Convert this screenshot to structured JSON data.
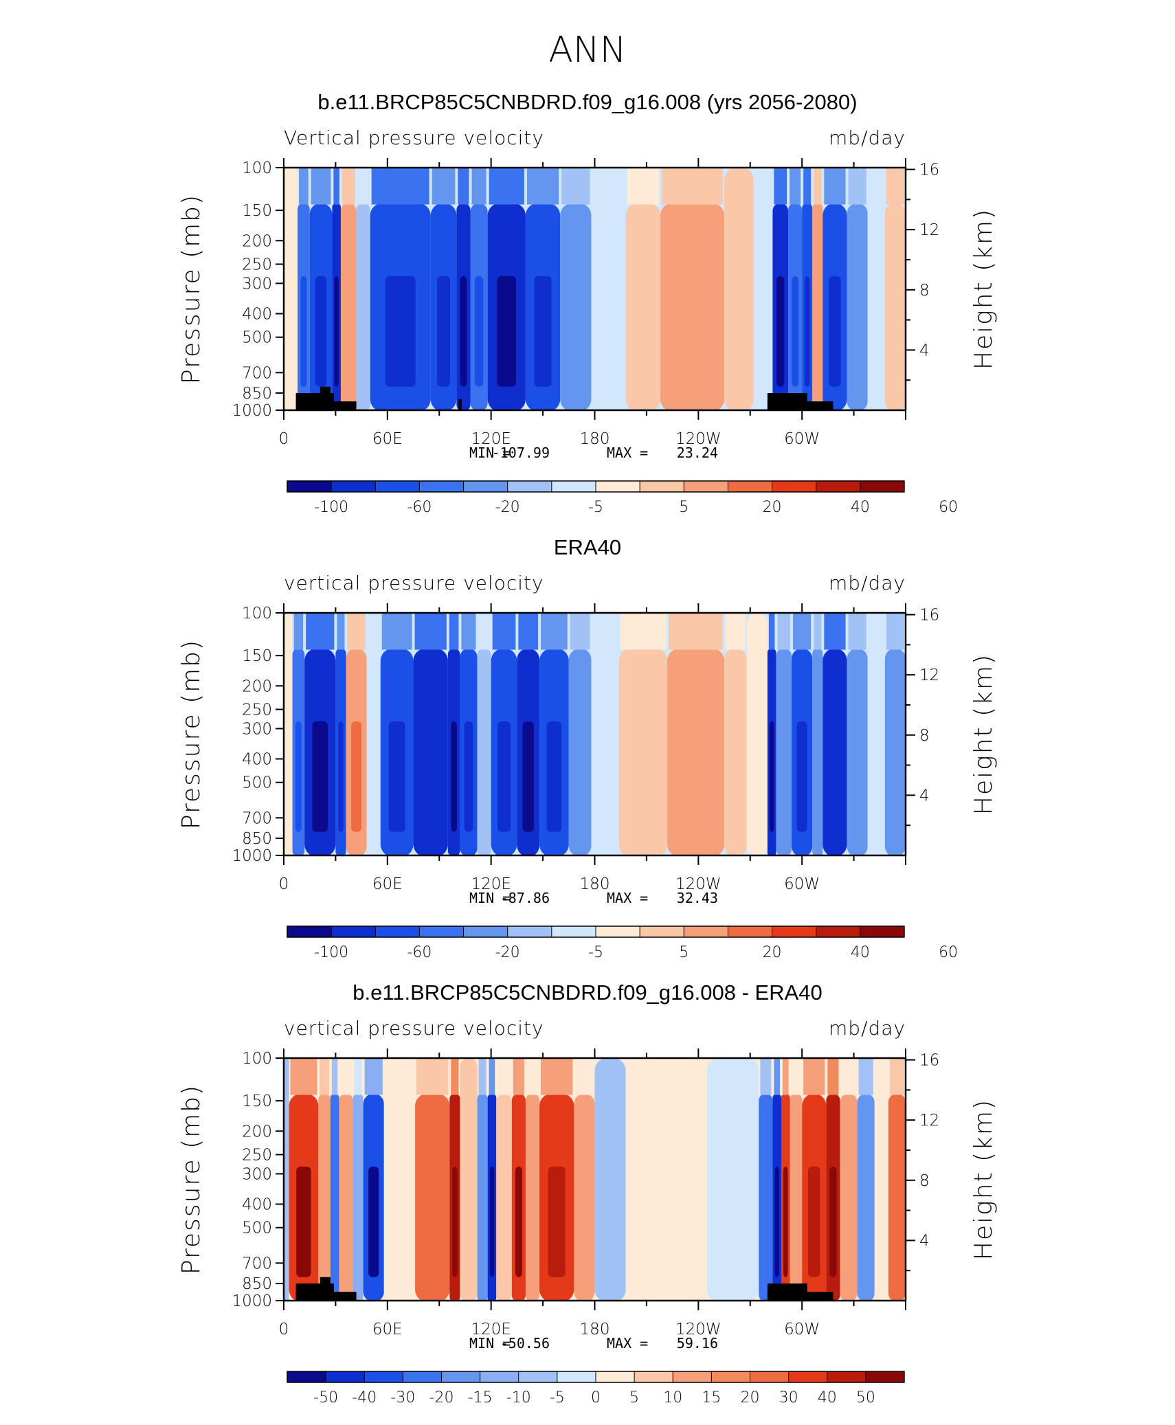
{
  "main_title": "ANN",
  "chart_data": [
    {
      "type": "heatmap",
      "title": "b.e11.BRCP85C5CNBDRD.f09_g16.008 (yrs 2056-2080)",
      "subtitle_left": "Vertical pressure velocity",
      "subtitle_right": "mb/day",
      "ylabel": "Pressure (mb)",
      "ylabel_right": "Height (km)",
      "x_ticks": [
        "0",
        "60E",
        "120E",
        "180",
        "120W",
        "60W"
      ],
      "y_ticks": [
        "100",
        "150",
        "200",
        "250",
        "300",
        "400",
        "500",
        "700",
        "850",
        "1000"
      ],
      "y_ticks_right": [
        "16",
        "12",
        "8",
        "4"
      ],
      "min_label": "MIN =",
      "min_value": "-107.99",
      "max_label": "MAX =",
      "max_value": "23.24",
      "colorbar_labels": [
        "-100",
        "-60",
        "-20",
        "-5",
        "5",
        "20",
        "40",
        "60"
      ],
      "bands": [
        {
          "lon0": 0,
          "lon1": 8,
          "v": 3
        },
        {
          "lon0": 8,
          "lon1": 15,
          "v": -30
        },
        {
          "lon0": 15,
          "lon1": 28,
          "v": -45
        },
        {
          "lon0": 28,
          "lon1": 33,
          "v": -90
        },
        {
          "lon0": 33,
          "lon1": 42,
          "v": 22
        },
        {
          "lon0": 42,
          "lon1": 50,
          "v": -10
        },
        {
          "lon0": 50,
          "lon1": 85,
          "v": -60
        },
        {
          "lon0": 85,
          "lon1": 100,
          "v": -45
        },
        {
          "lon0": 100,
          "lon1": 108,
          "v": -70
        },
        {
          "lon0": 108,
          "lon1": 118,
          "v": -30
        },
        {
          "lon0": 118,
          "lon1": 140,
          "v": -75
        },
        {
          "lon0": 140,
          "lon1": 160,
          "v": -45
        },
        {
          "lon0": 160,
          "lon1": 178,
          "v": -15
        },
        {
          "lon0": 178,
          "lon1": 198,
          "v": -3
        },
        {
          "lon0": 198,
          "lon1": 218,
          "v": 10
        },
        {
          "lon0": 218,
          "lon1": 255,
          "v": 22
        },
        {
          "lon0": 255,
          "lon1": 272,
          "v": 5
        },
        {
          "lon0": 272,
          "lon1": 283,
          "v": -3
        },
        {
          "lon0": 283,
          "lon1": 292,
          "v": -90
        },
        {
          "lon0": 292,
          "lon1": 300,
          "v": -40
        },
        {
          "lon0": 300,
          "lon1": 306,
          "v": -60
        },
        {
          "lon0": 306,
          "lon1": 312,
          "v": 25
        },
        {
          "lon0": 312,
          "lon1": 326,
          "v": -50
        },
        {
          "lon0": 326,
          "lon1": 338,
          "v": -20
        },
        {
          "lon0": 338,
          "lon1": 348,
          "v": -5
        },
        {
          "lon0": 348,
          "lon1": 360,
          "v": 18
        }
      ]
    },
    {
      "type": "heatmap",
      "title": "ERA40",
      "subtitle_left": "vertical pressure velocity",
      "subtitle_right": "mb/day",
      "ylabel": "Pressure (mb)",
      "ylabel_right": "Height (km)",
      "x_ticks": [
        "0",
        "60E",
        "120E",
        "180",
        "120W",
        "60W"
      ],
      "y_ticks": [
        "100",
        "150",
        "200",
        "250",
        "300",
        "400",
        "500",
        "700",
        "850",
        "1000"
      ],
      "y_ticks_right": [
        "16",
        "12",
        "8",
        "4"
      ],
      "min_label": "MIN =",
      "min_value": "-87.86",
      "max_label": "MAX =",
      "max_value": "32.43",
      "colorbar_labels": [
        "-100",
        "-60",
        "-20",
        "-5",
        "5",
        "20",
        "40",
        "60"
      ],
      "bands": [
        {
          "lon0": 0,
          "lon1": 5,
          "v": 3
        },
        {
          "lon0": 5,
          "lon1": 12,
          "v": -30
        },
        {
          "lon0": 12,
          "lon1": 30,
          "v": -70
        },
        {
          "lon0": 30,
          "lon1": 36,
          "v": -45
        },
        {
          "lon0": 36,
          "lon1": 48,
          "v": 30
        },
        {
          "lon0": 48,
          "lon1": 56,
          "v": -3
        },
        {
          "lon0": 56,
          "lon1": 75,
          "v": -45
        },
        {
          "lon0": 75,
          "lon1": 95,
          "v": -65
        },
        {
          "lon0": 95,
          "lon1": 102,
          "v": -90
        },
        {
          "lon0": 102,
          "lon1": 112,
          "v": -50
        },
        {
          "lon0": 112,
          "lon1": 120,
          "v": -10
        },
        {
          "lon0": 120,
          "lon1": 135,
          "v": -60
        },
        {
          "lon0": 135,
          "lon1": 148,
          "v": -75
        },
        {
          "lon0": 148,
          "lon1": 165,
          "v": -50
        },
        {
          "lon0": 165,
          "lon1": 178,
          "v": -20
        },
        {
          "lon0": 178,
          "lon1": 194,
          "v": -3
        },
        {
          "lon0": 194,
          "lon1": 222,
          "v": 10
        },
        {
          "lon0": 222,
          "lon1": 255,
          "v": 20
        },
        {
          "lon0": 255,
          "lon1": 268,
          "v": 10
        },
        {
          "lon0": 268,
          "lon1": 280,
          "v": 3
        },
        {
          "lon0": 280,
          "lon1": 285,
          "v": -90
        },
        {
          "lon0": 285,
          "lon1": 294,
          "v": -20
        },
        {
          "lon0": 294,
          "lon1": 306,
          "v": -55
        },
        {
          "lon0": 306,
          "lon1": 312,
          "v": -15
        },
        {
          "lon0": 312,
          "lon1": 326,
          "v": -65
        },
        {
          "lon0": 326,
          "lon1": 338,
          "v": -20
        },
        {
          "lon0": 338,
          "lon1": 348,
          "v": -3
        },
        {
          "lon0": 348,
          "lon1": 360,
          "v": -20
        }
      ]
    },
    {
      "type": "heatmap",
      "title": "b.e11.BRCP85C5CNBDRD.f09_g16.008 - ERA40",
      "subtitle_left": "vertical pressure velocity",
      "subtitle_right": "mb/day",
      "ylabel": "Pressure (mb)",
      "ylabel_right": "Height (km)",
      "x_ticks": [
        "0",
        "60E",
        "120E",
        "180",
        "120W",
        "60W"
      ],
      "y_ticks": [
        "100",
        "150",
        "200",
        "250",
        "300",
        "400",
        "500",
        "700",
        "850",
        "1000"
      ],
      "y_ticks_right": [
        "16",
        "12",
        "8",
        "4"
      ],
      "min_label": "MIN =",
      "min_value": "-50.56",
      "max_label": "MAX =",
      "max_value": "59.16",
      "colorbar_labels": [
        "-50",
        "-40",
        "-30",
        "-20",
        "-15",
        "-10",
        "-5",
        "0",
        "5",
        "10",
        "15",
        "20",
        "30",
        "40",
        "50"
      ],
      "bands": [
        {
          "lon0": 0,
          "lon1": 3,
          "v": -5
        },
        {
          "lon0": 3,
          "lon1": 20,
          "v": 35
        },
        {
          "lon0": 20,
          "lon1": 27,
          "v": 15
        },
        {
          "lon0": 27,
          "lon1": 32,
          "v": -20
        },
        {
          "lon0": 32,
          "lon1": 40,
          "v": 12
        },
        {
          "lon0": 40,
          "lon1": 46,
          "v": -10
        },
        {
          "lon0": 46,
          "lon1": 58,
          "v": -35
        },
        {
          "lon0": 58,
          "lon1": 76,
          "v": 3
        },
        {
          "lon0": 76,
          "lon1": 96,
          "v": 22
        },
        {
          "lon0": 96,
          "lon1": 102,
          "v": 45
        },
        {
          "lon0": 102,
          "lon1": 112,
          "v": 8
        },
        {
          "lon0": 112,
          "lon1": 118,
          "v": -15
        },
        {
          "lon0": 118,
          "lon1": 123,
          "v": -45
        },
        {
          "lon0": 123,
          "lon1": 132,
          "v": 10
        },
        {
          "lon0": 132,
          "lon1": 140,
          "v": 35
        },
        {
          "lon0": 140,
          "lon1": 148,
          "v": 12
        },
        {
          "lon0": 148,
          "lon1": 168,
          "v": 32
        },
        {
          "lon0": 168,
          "lon1": 180,
          "v": 12
        },
        {
          "lon0": 180,
          "lon1": 198,
          "v": -8
        },
        {
          "lon0": 198,
          "lon1": 245,
          "v": 3
        },
        {
          "lon0": 245,
          "lon1": 275,
          "v": -3
        },
        {
          "lon0": 275,
          "lon1": 283,
          "v": -20
        },
        {
          "lon0": 283,
          "lon1": 288,
          "v": -45
        },
        {
          "lon0": 288,
          "lon1": 293,
          "v": 35
        },
        {
          "lon0": 293,
          "lon1": 300,
          "v": 12
        },
        {
          "lon0": 300,
          "lon1": 314,
          "v": 32
        },
        {
          "lon0": 314,
          "lon1": 322,
          "v": 45
        },
        {
          "lon0": 322,
          "lon1": 332,
          "v": 12
        },
        {
          "lon0": 332,
          "lon1": 342,
          "v": -15
        },
        {
          "lon0": 342,
          "lon1": 350,
          "v": 3
        },
        {
          "lon0": 350,
          "lon1": 360,
          "v": 22
        }
      ]
    }
  ],
  "palette": [
    "#0c0a8c",
    "#0e2ed0",
    "#1a50e8",
    "#3b72f0",
    "#6496f0",
    "#a2c2f6",
    "#d2e6fc",
    "#fdebd8",
    "#fac7a8",
    "#f5a07a",
    "#ef6c42",
    "#e43a1a",
    "#b81c0c",
    "#8a0808"
  ]
}
